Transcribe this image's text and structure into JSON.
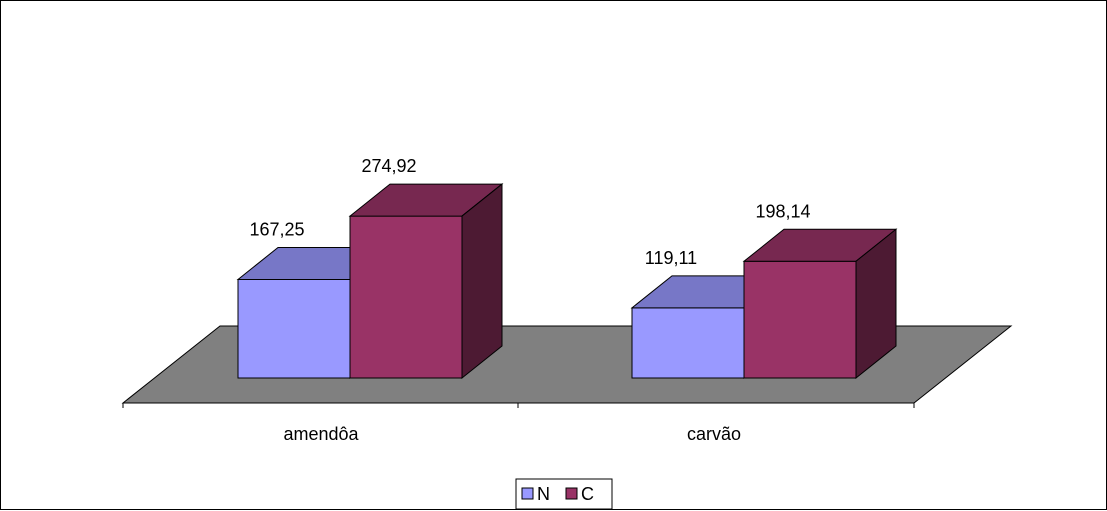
{
  "chart_data": {
    "type": "bar",
    "categories": [
      "amendôa",
      "carvão"
    ],
    "series": [
      {
        "name": "N",
        "values": [
          167.25,
          119.11
        ],
        "value_labels": [
          "167,25",
          "119,11"
        ],
        "color": "#9999FF"
      },
      {
        "name": "C",
        "values": [
          274.92,
          198.14
        ],
        "value_labels": [
          "274,92",
          "198,14"
        ],
        "color": "#993366"
      }
    ],
    "title": "",
    "xlabel": "",
    "ylabel": "",
    "ylim": [
      0,
      300
    ],
    "grid": false,
    "legend": "bottom",
    "style": "3d-column",
    "floor_color": "#808080",
    "border_color": "#000000"
  }
}
